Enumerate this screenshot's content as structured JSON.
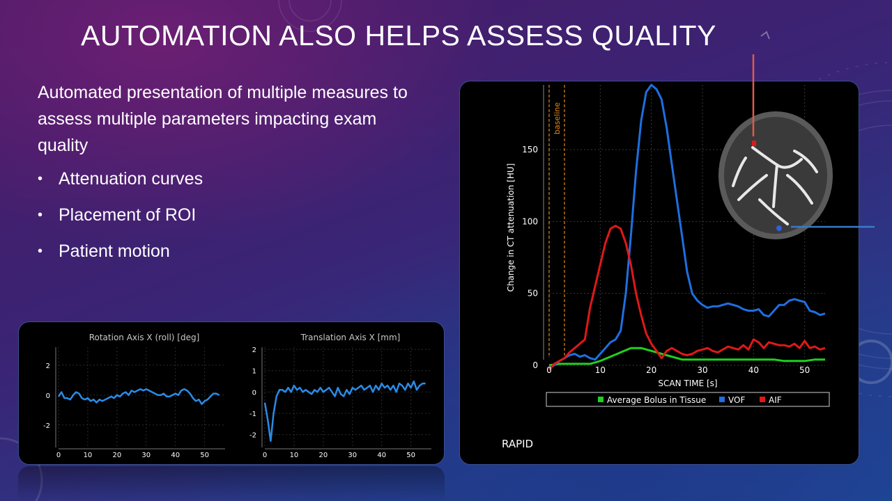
{
  "slide": {
    "title": "AUTOMATION ALSO HELPS ASSESS QUALITY",
    "intro": "Automated presentation of multiple measures to assess multiple parameters impacting exam quality",
    "bullets": [
      "Attenuation curves",
      "Placement of ROI",
      "Patient motion"
    ]
  },
  "colors": {
    "vof": "#1f6fe0",
    "aif": "#e01818",
    "tissue": "#1fd01f",
    "baseline": "#e08a1c",
    "motion": "#2a8be8",
    "pointer_red": "#e05a4a",
    "pointer_blue": "#3a7ac8"
  },
  "chart_data": [
    {
      "type": "line",
      "title": "",
      "xlabel": "SCAN TIME [s]",
      "ylabel": "Change in CT attenuation [HU]",
      "xlim": [
        0,
        54
      ],
      "ylim": [
        0,
        195
      ],
      "xticks": [
        0,
        10,
        20,
        30,
        40,
        50
      ],
      "yticks": [
        0,
        50,
        100,
        150
      ],
      "grid": true,
      "legend_position": "bottom",
      "annotation": "baseline",
      "baseline_lines": [
        0,
        3
      ],
      "watermark": "RAPID",
      "series": [
        {
          "name": "Average Bolus in Tissue",
          "color_key": "tissue",
          "x": [
            0,
            2,
            4,
            6,
            8,
            10,
            12,
            14,
            16,
            18,
            20,
            22,
            24,
            26,
            28,
            30,
            32,
            34,
            36,
            38,
            40,
            42,
            44,
            46,
            48,
            50,
            52,
            54
          ],
          "y": [
            0,
            1,
            1,
            1,
            1,
            3,
            6,
            9,
            12,
            12,
            10,
            8,
            6,
            4,
            4,
            4,
            4,
            4,
            4,
            4,
            4,
            4,
            4,
            3,
            3,
            3,
            4,
            4
          ]
        },
        {
          "name": "VOF",
          "color_key": "vof",
          "x": [
            0,
            1,
            2,
            3,
            4,
            5,
            6,
            7,
            8,
            9,
            10,
            11,
            12,
            13,
            14,
            15,
            16,
            17,
            18,
            19,
            20,
            21,
            22,
            23,
            24,
            25,
            26,
            27,
            28,
            29,
            30,
            31,
            32,
            33,
            34,
            35,
            36,
            37,
            38,
            39,
            40,
            41,
            42,
            43,
            44,
            45,
            46,
            47,
            48,
            49,
            50,
            51,
            52,
            53,
            54
          ],
          "y": [
            -2,
            0,
            3,
            5,
            7,
            8,
            6,
            7,
            5,
            4,
            8,
            12,
            16,
            18,
            24,
            50,
            90,
            135,
            170,
            190,
            195,
            192,
            185,
            165,
            140,
            115,
            90,
            65,
            50,
            45,
            42,
            40,
            41,
            41,
            42,
            43,
            42,
            41,
            39,
            38,
            38,
            39,
            35,
            34,
            38,
            42,
            42,
            45,
            46,
            45,
            44,
            38,
            37,
            35,
            36
          ]
        },
        {
          "name": "AIF",
          "color_key": "aif",
          "x": [
            0,
            1,
            2,
            3,
            4,
            5,
            6,
            7,
            8,
            9,
            10,
            11,
            12,
            13,
            14,
            15,
            16,
            17,
            18,
            19,
            20,
            21,
            22,
            23,
            24,
            25,
            26,
            27,
            28,
            29,
            30,
            31,
            32,
            33,
            34,
            35,
            36,
            37,
            38,
            39,
            40,
            41,
            42,
            43,
            44,
            45,
            46,
            47,
            48,
            49,
            50,
            51,
            52,
            53,
            54
          ],
          "y": [
            -3,
            1,
            3,
            5,
            9,
            12,
            15,
            18,
            40,
            55,
            70,
            85,
            95,
            97,
            95,
            85,
            70,
            50,
            35,
            22,
            15,
            10,
            5,
            10,
            12,
            10,
            8,
            7,
            8,
            10,
            11,
            12,
            10,
            9,
            11,
            13,
            12,
            11,
            14,
            11,
            18,
            16,
            12,
            16,
            15,
            14,
            14,
            13,
            15,
            12,
            17,
            12,
            13,
            11,
            12
          ]
        }
      ]
    },
    {
      "type": "line",
      "title": "Rotation Axis X (roll) [deg]",
      "xlabel": "",
      "ylabel": "",
      "xlim": [
        0,
        57
      ],
      "ylim": [
        -3.5,
        3.2
      ],
      "xticks": [
        0,
        10,
        20,
        30,
        40,
        50
      ],
      "yticks": [
        -2,
        0,
        2
      ],
      "grid": true,
      "x": [
        0,
        1,
        2,
        3,
        4,
        5,
        6,
        7,
        8,
        9,
        10,
        11,
        12,
        13,
        14,
        15,
        16,
        17,
        18,
        19,
        20,
        21,
        22,
        23,
        24,
        25,
        26,
        27,
        28,
        29,
        30,
        31,
        32,
        33,
        34,
        35,
        36,
        37,
        38,
        39,
        40,
        41,
        42,
        43,
        44,
        45,
        46,
        47,
        48,
        49,
        50,
        51,
        52,
        53,
        54,
        55
      ],
      "values": [
        -0.1,
        0.2,
        -0.2,
        -0.2,
        -0.3,
        0.0,
        0.2,
        0.1,
        -0.2,
        -0.3,
        -0.2,
        -0.4,
        -0.3,
        -0.5,
        -0.3,
        -0.4,
        -0.3,
        -0.2,
        -0.1,
        -0.2,
        0.0,
        -0.1,
        0.1,
        0.2,
        0.0,
        0.3,
        0.2,
        0.3,
        0.4,
        0.3,
        0.4,
        0.3,
        0.2,
        0.1,
        0.0,
        0.0,
        0.1,
        -0.1,
        -0.1,
        0.0,
        0.1,
        0.0,
        0.3,
        0.4,
        0.3,
        0.1,
        -0.2,
        -0.4,
        -0.3,
        -0.6,
        -0.4,
        -0.3,
        -0.1,
        0.1,
        0.1,
        0.0
      ]
    },
    {
      "type": "line",
      "title": "Translation Axis X [mm]",
      "xlabel": "",
      "ylabel": "",
      "xlim": [
        0,
        57
      ],
      "ylim": [
        -2.6,
        2.1
      ],
      "xticks": [
        0,
        10,
        20,
        30,
        40,
        50
      ],
      "yticks": [
        -2,
        -1,
        0,
        1,
        2
      ],
      "grid": true,
      "x": [
        0,
        1,
        2,
        3,
        4,
        5,
        6,
        7,
        8,
        9,
        10,
        11,
        12,
        13,
        14,
        15,
        16,
        17,
        18,
        19,
        20,
        21,
        22,
        23,
        24,
        25,
        26,
        27,
        28,
        29,
        30,
        31,
        32,
        33,
        34,
        35,
        36,
        37,
        38,
        39,
        40,
        41,
        42,
        43,
        44,
        45,
        46,
        47,
        48,
        49,
        50,
        51,
        52,
        53,
        54,
        55
      ],
      "values": [
        -0.5,
        -1.3,
        -2.3,
        -1.0,
        -0.2,
        0.1,
        0.1,
        0.0,
        0.2,
        0.0,
        0.3,
        0.1,
        0.2,
        0.0,
        0.1,
        0.0,
        -0.1,
        0.1,
        0.0,
        0.2,
        0.0,
        0.1,
        0.2,
        0.0,
        -0.2,
        0.2,
        -0.1,
        -0.2,
        0.1,
        -0.1,
        0.2,
        0.1,
        0.2,
        0.3,
        0.1,
        0.2,
        0.3,
        0.0,
        0.3,
        0.1,
        0.4,
        0.2,
        0.3,
        0.1,
        0.3,
        0.0,
        0.4,
        0.3,
        0.1,
        0.4,
        0.2,
        0.5,
        0.1,
        0.3,
        0.4,
        0.4
      ]
    }
  ]
}
